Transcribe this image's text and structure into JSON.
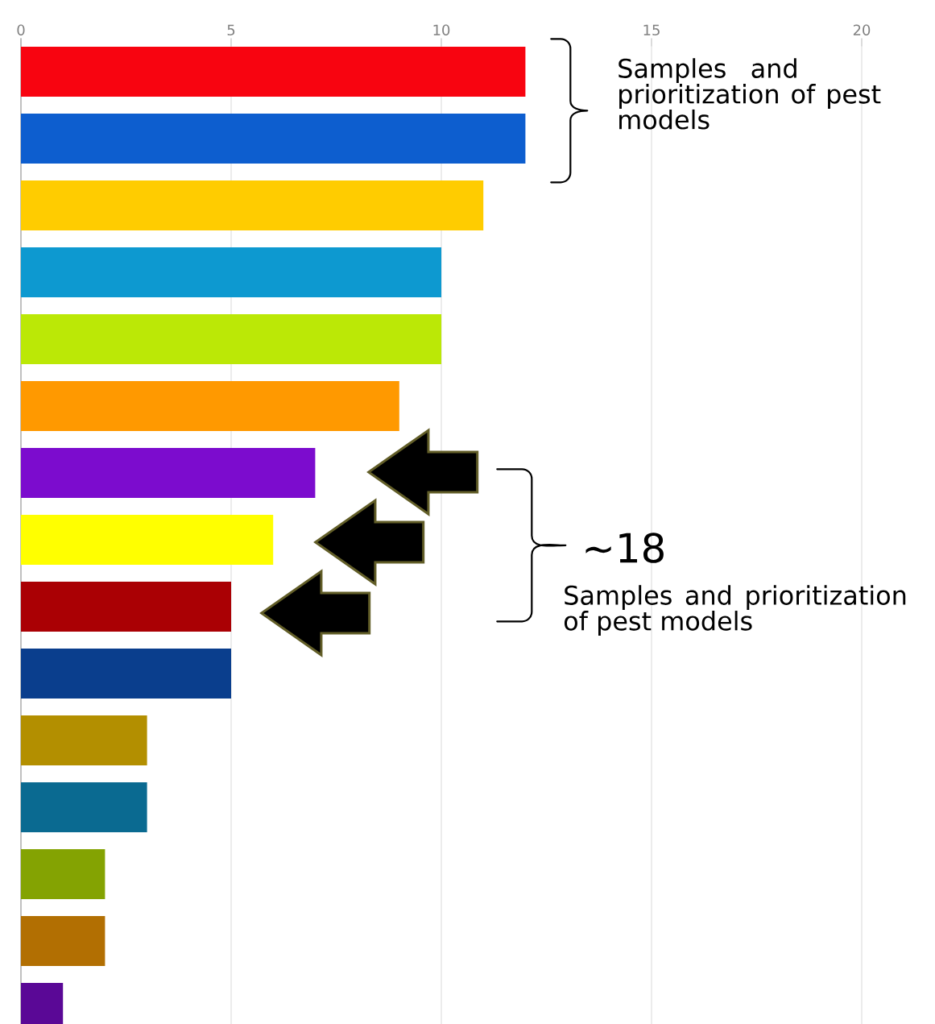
{
  "chart_data": {
    "type": "bar",
    "orientation": "horizontal",
    "categories": [
      null,
      null,
      null,
      null,
      null,
      null,
      null,
      null,
      null,
      null,
      null,
      null,
      null,
      null,
      null
    ],
    "values": [
      12,
      12,
      11,
      10,
      10,
      9,
      7,
      6,
      5,
      5,
      3,
      3,
      2,
      2,
      1
    ],
    "colors": [
      "#f80410",
      "#0d5ecf",
      "#ffcc00",
      "#0d99d0",
      "#bbe806",
      "#ff9900",
      "#7c0cce",
      "#ffff00",
      "#aa0004",
      "#0a3e8d",
      "#b38f00",
      "#0a6a91",
      "#84a302",
      "#b26f02",
      "#5a0896"
    ],
    "xlim": [
      0,
      20
    ],
    "xticks": [
      0,
      5,
      10,
      15,
      20
    ],
    "grid": "x",
    "annotations": [
      "Samples and prioritization of pest models",
      "~18",
      "Samples and prioritization of pest models"
    ]
  }
}
